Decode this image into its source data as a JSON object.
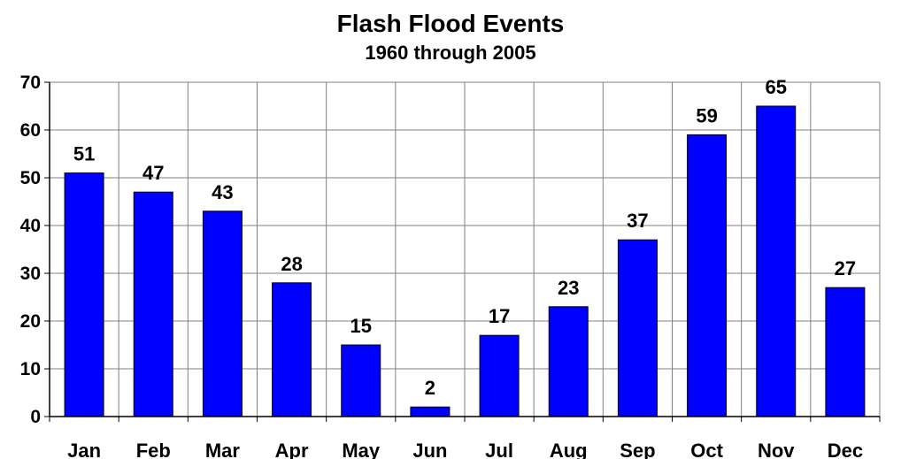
{
  "chart_data": {
    "type": "bar",
    "title": "Flash Flood Events",
    "subtitle": "1960 through 2005",
    "xlabel": "",
    "ylabel": "",
    "categories": [
      "Jan",
      "Feb",
      "Mar",
      "Apr",
      "May",
      "Jun",
      "Jul",
      "Aug",
      "Sep",
      "Oct",
      "Nov",
      "Dec"
    ],
    "values": [
      51,
      47,
      43,
      28,
      15,
      2,
      17,
      23,
      37,
      59,
      65,
      27
    ],
    "data_labels": [
      "51",
      "47",
      "43",
      "28",
      "15",
      "2",
      "17",
      "23",
      "37",
      "59",
      "65",
      "27"
    ],
    "ylim": [
      0,
      70
    ],
    "yticks": [
      0,
      10,
      20,
      30,
      40,
      50,
      60,
      70
    ],
    "ytick_labels": [
      "0",
      "10",
      "20",
      "30",
      "40",
      "50",
      "60",
      "70"
    ],
    "grid": true,
    "legend": "none",
    "colors": {
      "bar": "#0000ff",
      "bar_edge": "#000000",
      "grid": "#808080",
      "axis": "#000000"
    }
  }
}
